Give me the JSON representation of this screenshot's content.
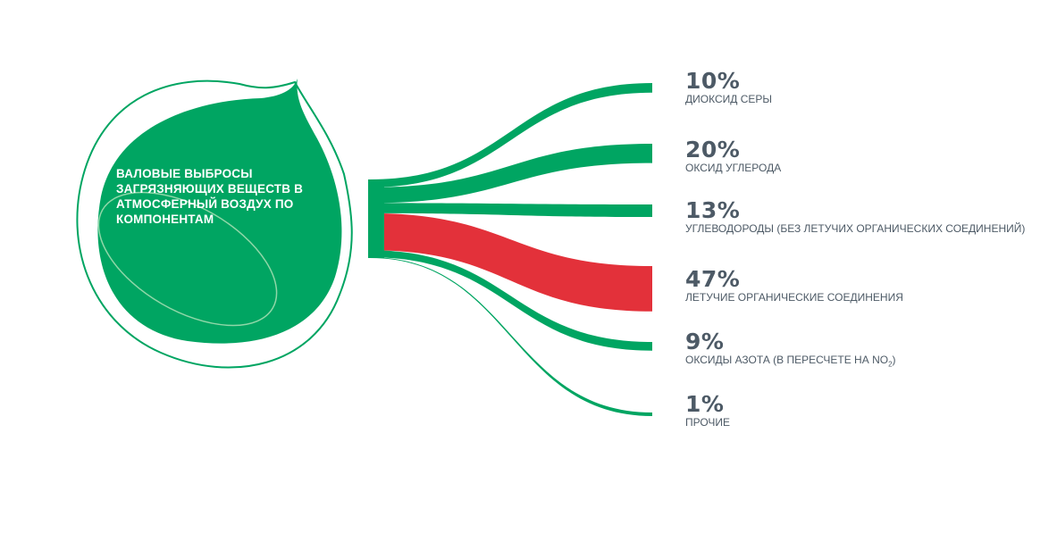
{
  "chart_data": {
    "type": "sankey",
    "title": "ВАЛОВЫЕ ВЫБРОСЫ ЗАГРЯЗНЯЮЩИХ ВЕЩЕСТВ В АТМОСФЕРНЫЙ ВОЗДУХ ПО КОМПОНЕНТАМ",
    "unit": "%",
    "highlight": "ЛЕТУЧИЕ ОРГАНИЧЕСКИЕ СОЕДИНЕНИЯ",
    "series": [
      {
        "label": "10%",
        "name": "ДИОКСИД СЕРЫ",
        "value": 10
      },
      {
        "label": "20%",
        "name": "ОКСИД УГЛЕРОДА",
        "value": 20
      },
      {
        "label": "13%",
        "name": "УГЛЕВОДОРОДЫ (БЕЗ ЛЕТУЧИХ ОРГАНИЧЕСКИХ СОЕДИНЕНИЙ)",
        "value": 13
      },
      {
        "label": "47%",
        "name": "ЛЕТУЧИЕ ОРГАНИЧЕСКИЕ СОЕДИНЕНИЯ",
        "value": 47
      },
      {
        "label": "9%",
        "name": "ОКСИДЫ АЗОТА (В ПЕРЕСЧЕТЕ НА NO",
        "name_sub": "2",
        "name_suffix": ")",
        "value": 9
      },
      {
        "label": "1%",
        "name": "ПРОЧИЕ",
        "value": 1
      }
    ]
  },
  "colors": {
    "green": "#00a562",
    "red": "#e3313a",
    "text": "#4d5a66",
    "outline": "#00a562",
    "ellipse": "#8fd7a8"
  }
}
